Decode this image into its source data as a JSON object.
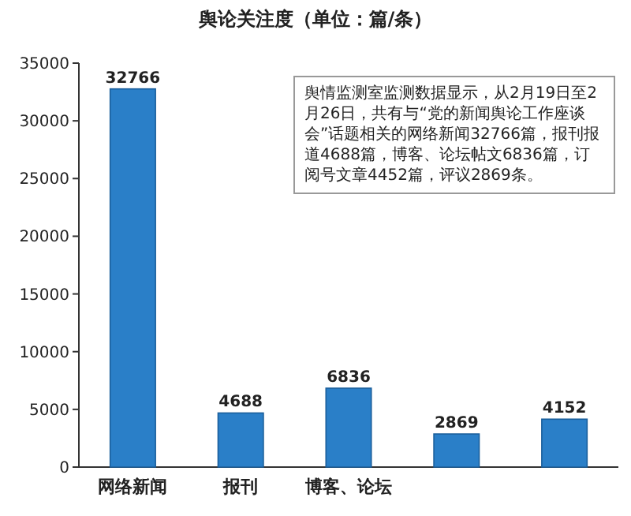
{
  "chart_data": {
    "type": "bar",
    "title": "舆论关注度（单位：篇/条）",
    "categories": [
      "网络新闻",
      "报刊",
      "博客、论坛",
      null,
      null
    ],
    "values": [
      32766,
      4688,
      6836,
      2869,
      4152
    ],
    "color": "#2a7fc8",
    "ylim": [
      0,
      35000
    ],
    "yticks": [
      0,
      5000,
      10000,
      15000,
      20000,
      25000,
      30000,
      35000
    ],
    "data_labels": true,
    "annotations": [
      "舆情监测室监测数据显示，从2月19日至2月26日，共有与“党的新闻舆论工作座谈会”话题相关的网络新闻32766篇，报刊报道4688篇，博客、论坛帖文6836篇，订阅号文章4452篇，评议2869条。"
    ]
  }
}
